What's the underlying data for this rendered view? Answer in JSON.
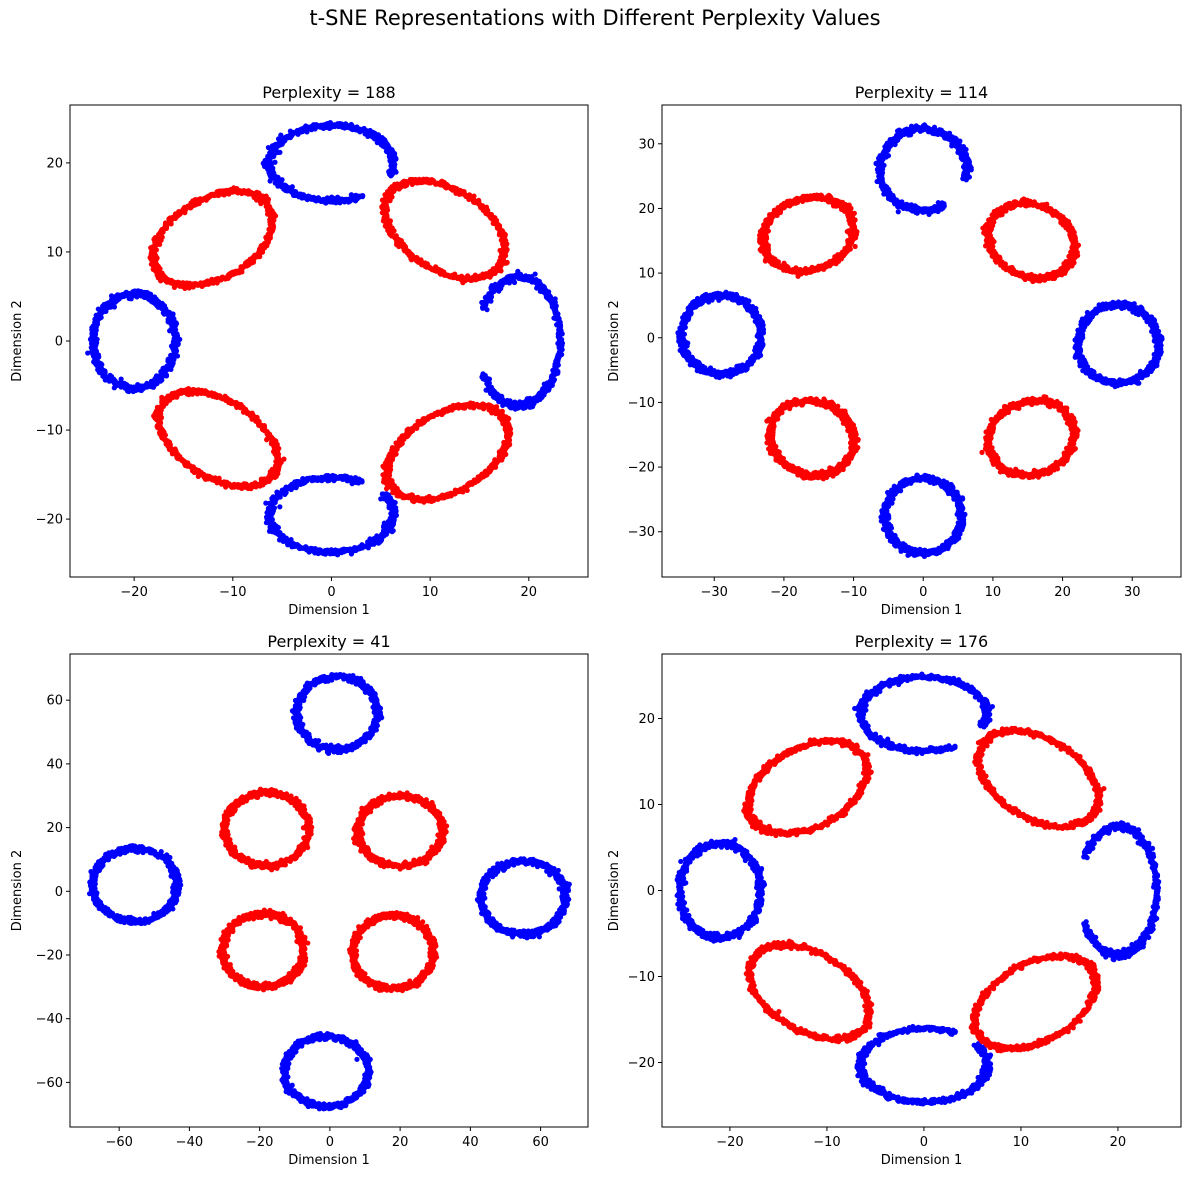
{
  "figure": {
    "suptitle": "t-SNE Representations with Different Perplexity Values"
  },
  "colors": {
    "red": "#ff0000",
    "blue": "#0000ff"
  },
  "chart_data": [
    {
      "type": "scatter",
      "title": "Perplexity = 188",
      "xlabel": "Dimension 1",
      "ylabel": "Dimension 2",
      "xlim": [
        -26.5,
        26
      ],
      "ylim": [
        -26.5,
        26.5
      ],
      "xticks": [
        -20,
        -10,
        0,
        10,
        20
      ],
      "yticks": [
        -20,
        -10,
        0,
        10,
        20
      ],
      "grid": false,
      "rings": [
        {
          "color": "blue",
          "cx": 0,
          "cy": 20,
          "rx": 6.3,
          "ry": 4.2,
          "tilt": 0,
          "gap_from": 300,
          "gap_to": 340,
          "thickness": 0.5
        },
        {
          "color": "blue",
          "cx": 0,
          "cy": -19.5,
          "rx": 6.3,
          "ry": 4.2,
          "tilt": 0,
          "gap_from": 35,
          "gap_to": 60,
          "thickness": 0.5
        },
        {
          "color": "blue",
          "cx": -20,
          "cy": 0,
          "rx": 4.2,
          "ry": 5.3,
          "tilt": 0,
          "gap_from": 0,
          "gap_to": 0,
          "thickness": 0.5
        },
        {
          "color": "blue",
          "cx": 19,
          "cy": 0,
          "rx": 4.2,
          "ry": 7.2,
          "tilt": 0,
          "gap_from": 150,
          "gap_to": 210,
          "thickness": 0.55
        },
        {
          "color": "red",
          "cx": -12,
          "cy": 11.5,
          "rx": 6.7,
          "ry": 4.4,
          "tilt": 35,
          "gap_from": 0,
          "gap_to": 0,
          "thickness": 0.45
        },
        {
          "color": "red",
          "cx": 11.5,
          "cy": 12.5,
          "rx": 6.9,
          "ry": 4.4,
          "tilt": -38,
          "gap_from": 0,
          "gap_to": 0,
          "thickness": 0.45
        },
        {
          "color": "red",
          "cx": -11.5,
          "cy": -11,
          "rx": 6.9,
          "ry": 4.2,
          "tilt": -37,
          "gap_from": 0,
          "gap_to": 0,
          "thickness": 0.45
        },
        {
          "color": "red",
          "cx": 11.8,
          "cy": -12.5,
          "rx": 6.9,
          "ry": 4.3,
          "tilt": 35,
          "gap_from": 0,
          "gap_to": 0,
          "thickness": 0.45
        }
      ]
    },
    {
      "type": "scatter",
      "title": "Perplexity = 114",
      "xlabel": "Dimension 1",
      "ylabel": "Dimension 2",
      "xlim": [
        -37.5,
        37
      ],
      "ylim": [
        -37,
        36
      ],
      "xticks": [
        -30,
        -20,
        -10,
        0,
        10,
        20,
        30
      ],
      "yticks": [
        -30,
        -20,
        -10,
        0,
        10,
        20,
        30
      ],
      "grid": false,
      "rings": [
        {
          "color": "blue",
          "cx": 0,
          "cy": 26,
          "rx": 6.2,
          "ry": 6.3,
          "tilt": 0,
          "gap_from": 300,
          "gap_to": 345,
          "thickness": 0.6
        },
        {
          "color": "blue",
          "cx": 0,
          "cy": -27.5,
          "rx": 5.5,
          "ry": 5.8,
          "tilt": 0,
          "gap_from": 0,
          "gap_to": 0,
          "thickness": 0.6
        },
        {
          "color": "blue",
          "cx": -29,
          "cy": 0.5,
          "rx": 5.7,
          "ry": 6.1,
          "tilt": 0,
          "gap_from": 0,
          "gap_to": 0,
          "thickness": 0.6
        },
        {
          "color": "blue",
          "cx": 28,
          "cy": -1,
          "rx": 5.8,
          "ry": 6.1,
          "tilt": 0,
          "gap_from": 0,
          "gap_to": 0,
          "thickness": 0.6
        },
        {
          "color": "red",
          "cx": -16.5,
          "cy": 16,
          "rx": 6.7,
          "ry": 5.5,
          "tilt": 25,
          "gap_from": 0,
          "gap_to": 0,
          "thickness": 0.6
        },
        {
          "color": "red",
          "cx": 15.5,
          "cy": 15,
          "rx": 6.5,
          "ry": 5.5,
          "tilt": -35,
          "gap_from": 0,
          "gap_to": 0,
          "thickness": 0.6
        },
        {
          "color": "red",
          "cx": -16,
          "cy": -15.5,
          "rx": 6.2,
          "ry": 5.6,
          "tilt": -30,
          "gap_from": 0,
          "gap_to": 0,
          "thickness": 0.6
        },
        {
          "color": "red",
          "cx": 15.5,
          "cy": -15.5,
          "rx": 6.3,
          "ry": 5.6,
          "tilt": 30,
          "gap_from": 0,
          "gap_to": 0,
          "thickness": 0.6
        }
      ]
    },
    {
      "type": "scatter",
      "title": "Perplexity = 41",
      "xlabel": "Dimension 1",
      "ylabel": "Dimension 2",
      "xlim": [
        -74,
        73.5
      ],
      "ylim": [
        -74,
        74.5
      ],
      "xticks": [
        -60,
        -40,
        -20,
        0,
        20,
        40,
        60
      ],
      "yticks": [
        -60,
        -40,
        -20,
        0,
        20,
        40,
        60
      ],
      "grid": false,
      "rings": [
        {
          "color": "blue",
          "cx": 2,
          "cy": 56,
          "rx": 11.5,
          "ry": 11.5,
          "tilt": 0,
          "gap_from": 0,
          "gap_to": 0,
          "thickness": 1.1
        },
        {
          "color": "blue",
          "cx": -1,
          "cy": -56.5,
          "rx": 12,
          "ry": 11,
          "tilt": 0,
          "gap_from": 0,
          "gap_to": 0,
          "thickness": 1.1
        },
        {
          "color": "blue",
          "cx": -55.5,
          "cy": 2,
          "rx": 12,
          "ry": 11.5,
          "tilt": 0,
          "gap_from": 0,
          "gap_to": 0,
          "thickness": 1.1
        },
        {
          "color": "blue",
          "cx": 55,
          "cy": -2,
          "rx": 12,
          "ry": 11.5,
          "tilt": 0,
          "gap_from": 0,
          "gap_to": 0,
          "thickness": 1.1
        },
        {
          "color": "red",
          "cx": -18,
          "cy": 19.5,
          "rx": 12,
          "ry": 11.5,
          "tilt": 0,
          "gap_from": 0,
          "gap_to": 0,
          "thickness": 1.1
        },
        {
          "color": "red",
          "cx": 20,
          "cy": 19,
          "rx": 12,
          "ry": 11,
          "tilt": 0,
          "gap_from": 0,
          "gap_to": 0,
          "thickness": 1.1
        },
        {
          "color": "red",
          "cx": -19,
          "cy": -18.5,
          "rx": 11.5,
          "ry": 11.5,
          "tilt": 0,
          "gap_from": 0,
          "gap_to": 0,
          "thickness": 1.1
        },
        {
          "color": "red",
          "cx": 18,
          "cy": -19,
          "rx": 11.5,
          "ry": 11.5,
          "tilt": 0,
          "gap_from": 0,
          "gap_to": 0,
          "thickness": 1.1
        }
      ]
    },
    {
      "type": "scatter",
      "title": "Perplexity = 176",
      "xlabel": "Dimension 1",
      "ylabel": "Dimension 2",
      "xlim": [
        -27,
        26.5
      ],
      "ylim": [
        -27.5,
        27.5
      ],
      "xticks": [
        -20,
        -10,
        0,
        10,
        20
      ],
      "yticks": [
        -20,
        -10,
        0,
        10,
        20
      ],
      "grid": false,
      "rings": [
        {
          "color": "blue",
          "cx": 0,
          "cy": 20.5,
          "rx": 6.5,
          "ry": 4.3,
          "tilt": 0,
          "gap_from": 300,
          "gap_to": 340,
          "thickness": 0.5
        },
        {
          "color": "blue",
          "cx": 0,
          "cy": -20.3,
          "rx": 6.5,
          "ry": 4.3,
          "tilt": 0,
          "gap_from": 35,
          "gap_to": 60,
          "thickness": 0.5
        },
        {
          "color": "blue",
          "cx": -21,
          "cy": 0,
          "rx": 4.2,
          "ry": 5.5,
          "tilt": 0,
          "gap_from": 0,
          "gap_to": 0,
          "thickness": 0.5
        },
        {
          "color": "blue",
          "cx": 20,
          "cy": 0,
          "rx": 4,
          "ry": 7.5,
          "tilt": 0,
          "gap_from": 150,
          "gap_to": 210,
          "thickness": 0.55
        },
        {
          "color": "red",
          "cx": -12,
          "cy": 12,
          "rx": 6.8,
          "ry": 4.5,
          "tilt": 35,
          "gap_from": 0,
          "gap_to": 0,
          "thickness": 0.45
        },
        {
          "color": "red",
          "cx": 11.8,
          "cy": 13,
          "rx": 7,
          "ry": 4.5,
          "tilt": -38,
          "gap_from": 0,
          "gap_to": 0,
          "thickness": 0.45
        },
        {
          "color": "red",
          "cx": -11.8,
          "cy": -11.8,
          "rx": 7,
          "ry": 4.4,
          "tilt": -37,
          "gap_from": 0,
          "gap_to": 0,
          "thickness": 0.45
        },
        {
          "color": "red",
          "cx": 11.5,
          "cy": -13,
          "rx": 7,
          "ry": 4.4,
          "tilt": 35,
          "gap_from": 0,
          "gap_to": 0,
          "thickness": 0.45
        }
      ]
    }
  ]
}
